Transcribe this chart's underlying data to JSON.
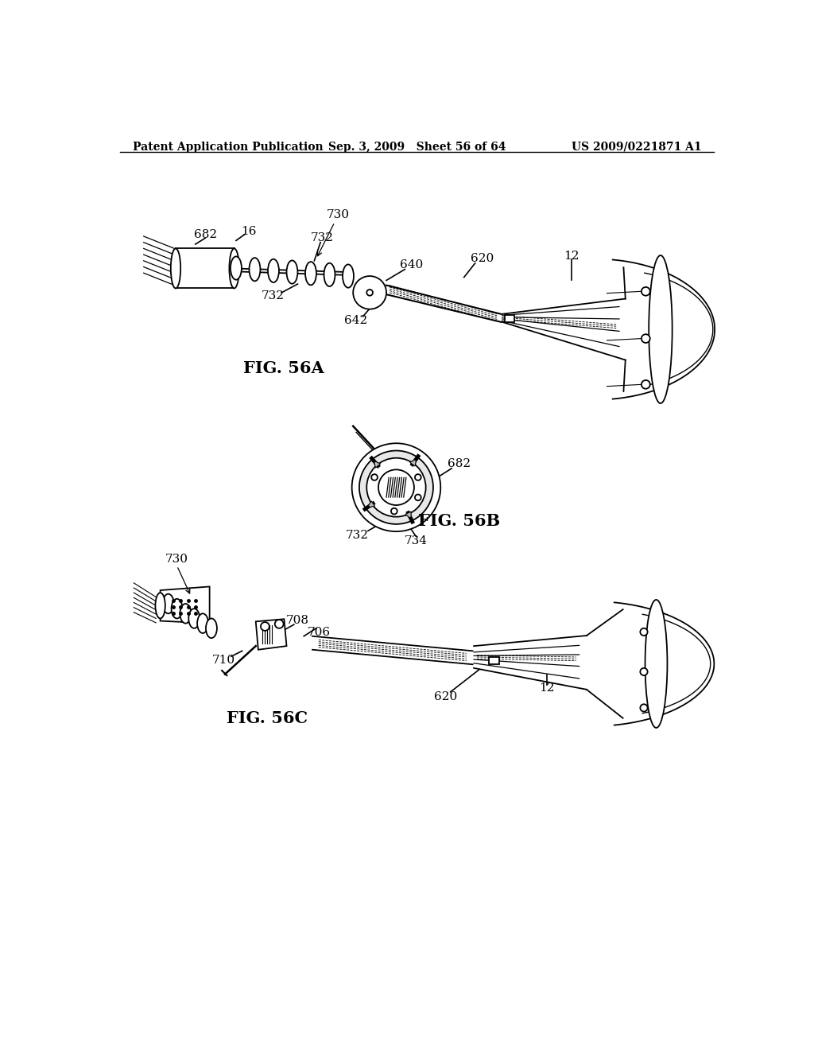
{
  "background_color": "#ffffff",
  "header_left": "Patent Application Publication",
  "header_mid": "Sep. 3, 2009   Sheet 56 of 64",
  "header_right": "US 2009/0221871 A1",
  "fig56a_label": "FIG. 56A",
  "fig56b_label": "FIG. 56B",
  "fig56c_label": "FIG. 56C",
  "line_color": "#000000",
  "bg": "#ffffff"
}
